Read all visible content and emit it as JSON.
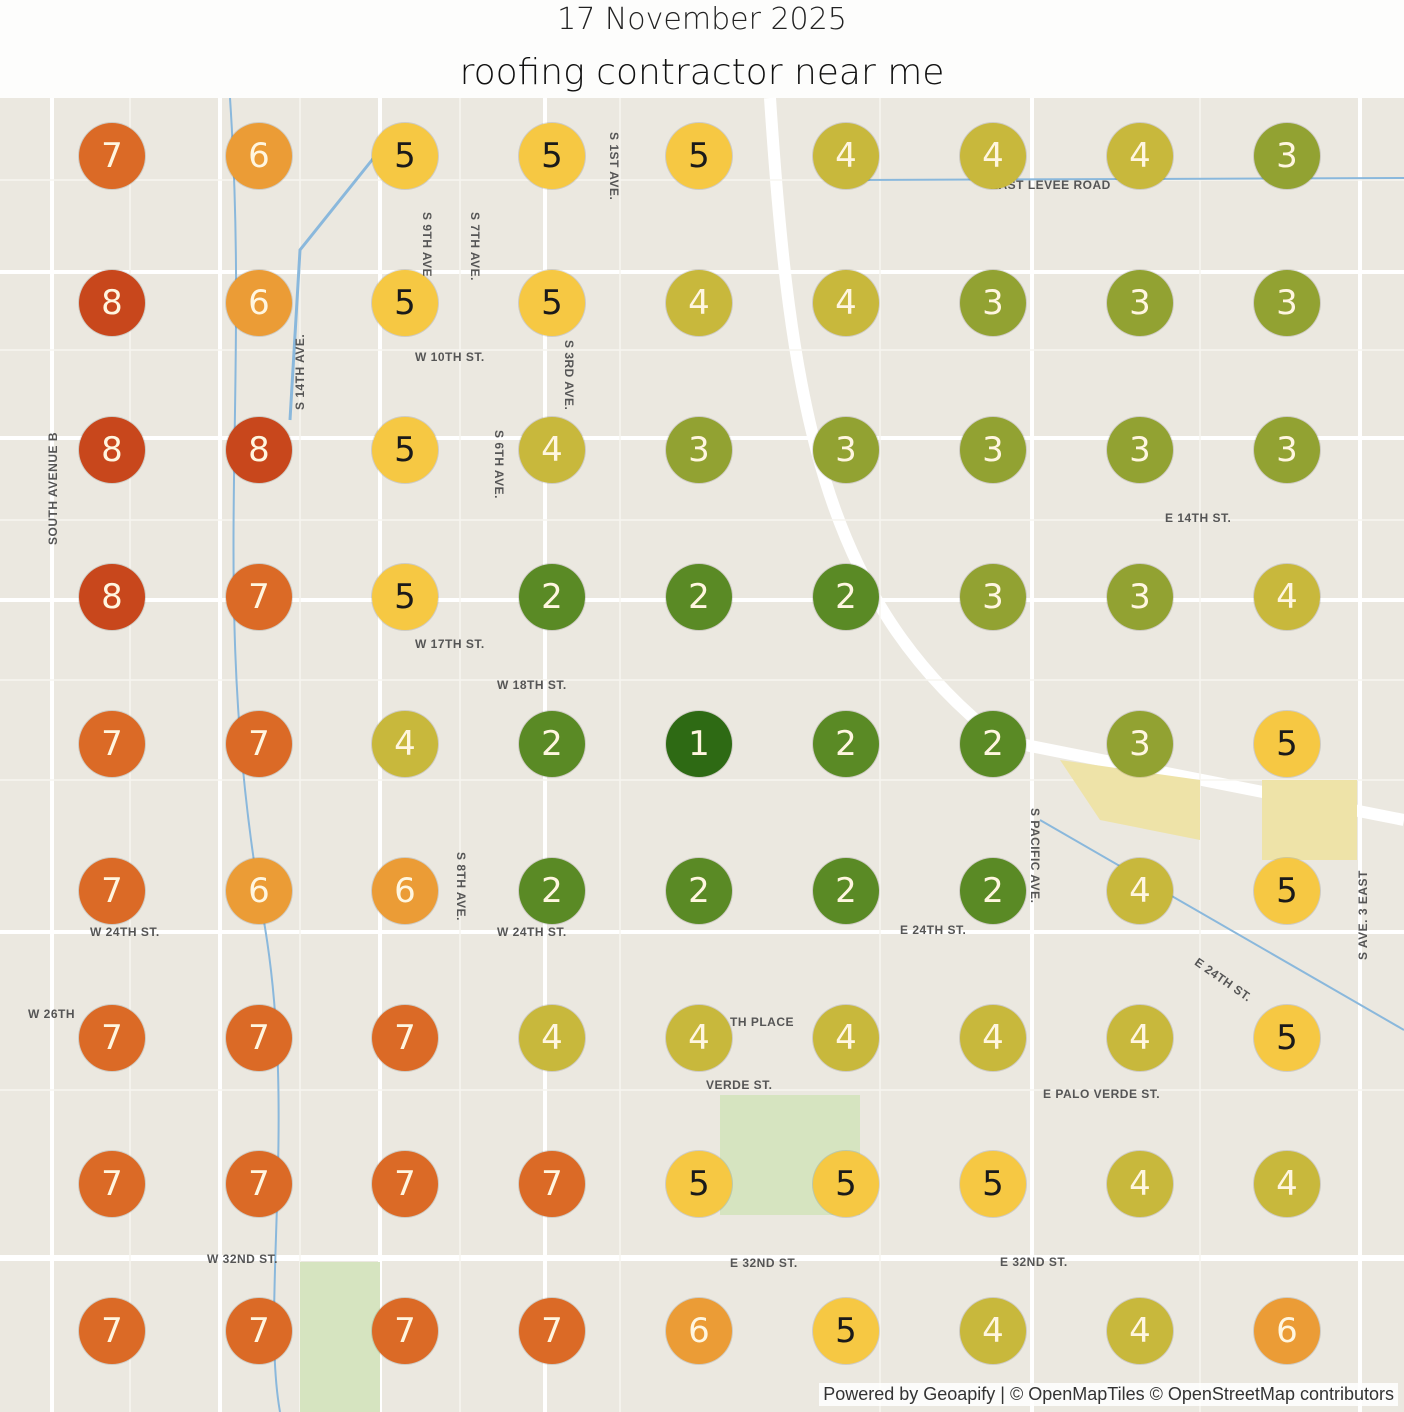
{
  "header": {
    "date": "17 November 2025",
    "keyword": "roofing contractor near me"
  },
  "rank_colors": {
    "1": "#2e6a14",
    "2": "#5a8a25",
    "3": "#92a232",
    "4": "#c8b83c",
    "5": "#f6c843",
    "6": "#eb9c36",
    "7": "#db6a26",
    "8": "#c8471c"
  },
  "grid": [
    [
      7,
      6,
      5,
      5,
      5,
      4,
      4,
      4,
      3
    ],
    [
      8,
      6,
      5,
      5,
      4,
      4,
      3,
      3,
      3
    ],
    [
      8,
      8,
      5,
      4,
      3,
      3,
      3,
      3,
      3
    ],
    [
      8,
      7,
      5,
      2,
      2,
      2,
      3,
      3,
      4
    ],
    [
      7,
      7,
      4,
      2,
      1,
      2,
      2,
      3,
      5
    ],
    [
      7,
      6,
      6,
      2,
      2,
      2,
      2,
      4,
      5
    ],
    [
      7,
      7,
      7,
      4,
      4,
      4,
      4,
      4,
      5
    ],
    [
      7,
      7,
      7,
      7,
      5,
      5,
      5,
      4,
      4
    ],
    [
      7,
      7,
      7,
      7,
      6,
      5,
      4,
      4,
      6
    ]
  ],
  "streets": [
    "W 10TH ST.",
    "W 17TH ST.",
    "W 18TH ST.",
    "W 24TH ST.",
    "W 24TH ST.",
    "E 24TH ST.",
    "W 32ND ST.",
    "E 32ND ST.",
    "E 32ND ST.",
    "E 14TH ST.",
    "EAST LEVEE ROAD",
    "E PALO VERDE ST.",
    "VERDE ST.",
    "TH PLACE",
    "W 26TH",
    "SOUTH AVENUE B",
    "S 14TH AVE.",
    "S 3RD AVE.",
    "S 6TH AVE.",
    "S 8TH AVE.",
    "S PACIFIC AVE.",
    "S AVE. 3 EAST",
    "S 1ST AVE.",
    "S 9TH AVE.",
    "S 7TH AVE.",
    "E 24TH ST."
  ],
  "attribution": "Powered by Geoapify | © OpenMapTiles © OpenStreetMap contributors"
}
